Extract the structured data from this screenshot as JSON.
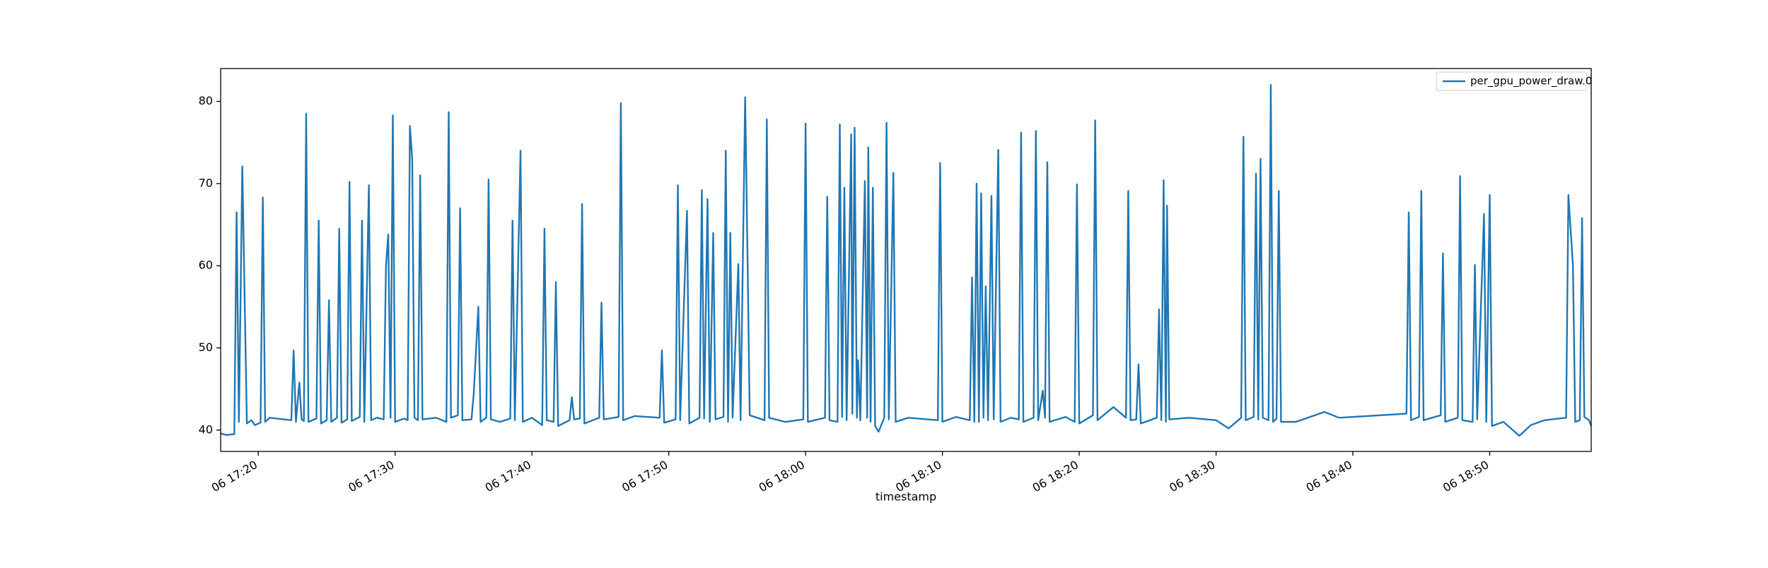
{
  "chart_data": {
    "type": "line",
    "x_label": "timestamp",
    "x": [
      "06 17:17:15",
      "06 17:17:40",
      "06 17:18:15",
      "06 17:18:25",
      "06 17:18:35",
      "06 17:18:50",
      "06 17:19:10",
      "06 17:19:30",
      "06 17:19:45",
      "06 17:20:10",
      "06 17:20:20",
      "06 17:20:30",
      "06 17:20:50",
      "06 17:22:25",
      "06 17:22:35",
      "06 17:22:45",
      "06 17:23:00",
      "06 17:23:10",
      "06 17:23:20",
      "06 17:23:30",
      "06 17:23:40",
      "06 17:24:15",
      "06 17:24:25",
      "06 17:24:35",
      "06 17:25:00",
      "06 17:25:10",
      "06 17:25:20",
      "06 17:25:45",
      "06 17:25:55",
      "06 17:26:05",
      "06 17:26:30",
      "06 17:26:40",
      "06 17:26:50",
      "06 17:27:25",
      "06 17:27:35",
      "06 17:27:45",
      "06 17:28:05",
      "06 17:28:15",
      "06 17:28:40",
      "06 17:29:10",
      "06 17:29:20",
      "06 17:29:30",
      "06 17:29:40",
      "06 17:29:50",
      "06 17:30:00",
      "06 17:30:40",
      "06 17:30:55",
      "06 17:31:05",
      "06 17:31:15",
      "06 17:31:25",
      "06 17:31:40",
      "06 17:31:50",
      "06 17:32:00",
      "06 17:33:00",
      "06 17:33:45",
      "06 17:33:55",
      "06 17:34:05",
      "06 17:34:35",
      "06 17:34:45",
      "06 17:34:55",
      "06 17:35:35",
      "06 17:35:45",
      "06 17:36:05",
      "06 17:36:15",
      "06 17:36:40",
      "06 17:36:50",
      "06 17:37:00",
      "06 17:37:40",
      "06 17:38:25",
      "06 17:38:35",
      "06 17:38:45",
      "06 17:39:10",
      "06 17:39:20",
      "06 17:40:00",
      "06 17:40:45",
      "06 17:40:55",
      "06 17:41:05",
      "06 17:41:35",
      "06 17:41:45",
      "06 17:41:55",
      "06 17:42:45",
      "06 17:42:55",
      "06 17:43:05",
      "06 17:43:30",
      "06 17:43:40",
      "06 17:43:50",
      "06 17:44:55",
      "06 17:45:05",
      "06 17:45:15",
      "06 17:46:20",
      "06 17:46:30",
      "06 17:46:40",
      "06 17:47:30",
      "06 17:49:20",
      "06 17:49:30",
      "06 17:49:40",
      "06 17:50:30",
      "06 17:50:40",
      "06 17:50:50",
      "06 17:51:20",
      "06 17:51:30",
      "06 17:52:15",
      "06 17:52:25",
      "06 17:52:35",
      "06 17:52:50",
      "06 17:53:00",
      "06 17:53:15",
      "06 17:53:25",
      "06 17:54:00",
      "06 17:54:10",
      "06 17:54:20",
      "06 17:54:30",
      "06 17:54:40",
      "06 17:55:05",
      "06 17:55:15",
      "06 17:55:35",
      "06 17:55:45",
      "06 17:55:55",
      "06 17:57:00",
      "06 17:57:10",
      "06 17:57:20",
      "06 17:58:30",
      "06 17:59:50",
      "06 18:00:00",
      "06 18:00:10",
      "06 18:01:25",
      "06 18:01:35",
      "06 18:01:45",
      "06 18:02:20",
      "06 18:02:30",
      "06 18:02:40",
      "06 18:02:50",
      "06 18:03:00",
      "06 18:03:20",
      "06 18:03:25",
      "06 18:03:35",
      "06 18:03:45",
      "06 18:03:50",
      "06 18:04:00",
      "06 18:04:20",
      "06 18:04:30",
      "06 18:04:35",
      "06 18:04:45",
      "06 18:04:55",
      "06 18:05:05",
      "06 18:05:20",
      "06 18:05:45",
      "06 18:05:55",
      "06 18:06:05",
      "06 18:06:25",
      "06 18:06:35",
      "06 18:07:30",
      "06 18:09:40",
      "06 18:09:50",
      "06 18:10:00",
      "06 18:11:00",
      "06 18:12:00",
      "06 18:12:10",
      "06 18:12:20",
      "06 18:12:30",
      "06 18:12:40",
      "06 18:12:50",
      "06 18:13:00",
      "06 18:13:10",
      "06 18:13:20",
      "06 18:13:35",
      "06 18:13:45",
      "06 18:14:05",
      "06 18:14:15",
      "06 18:15:00",
      "06 18:15:35",
      "06 18:15:45",
      "06 18:15:55",
      "06 18:16:40",
      "06 18:16:50",
      "06 18:17:00",
      "06 18:17:20",
      "06 18:17:30",
      "06 18:17:40",
      "06 18:17:50",
      "06 18:19:00",
      "06 18:19:40",
      "06 18:19:50",
      "06 18:20:00",
      "06 18:21:00",
      "06 18:21:10",
      "06 18:21:20",
      "06 18:22:30",
      "06 18:23:25",
      "06 18:23:35",
      "06 18:23:45",
      "06 18:24:10",
      "06 18:24:20",
      "06 18:24:30",
      "06 18:25:40",
      "06 18:25:50",
      "06 18:26:00",
      "06 18:26:10",
      "06 18:26:20",
      "06 18:26:25",
      "06 18:26:35",
      "06 18:28:00",
      "06 18:30:00",
      "06 18:30:55",
      "06 18:31:50",
      "06 18:32:00",
      "06 18:32:10",
      "06 18:32:45",
      "06 18:32:55",
      "06 18:33:05",
      "06 18:33:15",
      "06 18:33:25",
      "06 18:33:50",
      "06 18:34:00",
      "06 18:34:10",
      "06 18:34:25",
      "06 18:34:35",
      "06 18:34:45",
      "06 18:35:50",
      "06 18:37:55",
      "06 18:39:00",
      "06 18:42:00",
      "06 18:43:55",
      "06 18:44:05",
      "06 18:44:15",
      "06 18:44:50",
      "06 18:45:00",
      "06 18:45:10",
      "06 18:46:25",
      "06 18:46:35",
      "06 18:46:45",
      "06 18:47:40",
      "06 18:47:50",
      "06 18:48:00",
      "06 18:48:45",
      "06 18:48:55",
      "06 18:49:05",
      "06 18:49:35",
      "06 18:49:45",
      "06 18:50:00",
      "06 18:50:10",
      "06 18:51:00",
      "06 18:52:10",
      "06 18:53:00",
      "06 18:54:00",
      "06 18:55:35",
      "06 18:55:45",
      "06 18:56:05",
      "06 18:56:15",
      "06 18:56:35",
      "06 18:56:45",
      "06 18:56:55",
      "06 18:57:15",
      "06 18:57:25"
    ],
    "series": [
      {
        "name": "per_gpu_power_draw.0",
        "color": "#1f77b4",
        "values": [
          39.6,
          39.4,
          39.5,
          66.5,
          41.0,
          72.1,
          40.8,
          41.2,
          40.6,
          40.9,
          68.3,
          41.0,
          41.5,
          41.2,
          49.7,
          41.0,
          45.8,
          41.3,
          41.1,
          78.5,
          41.0,
          41.4,
          65.5,
          40.8,
          41.2,
          55.8,
          41.0,
          41.5,
          64.5,
          40.9,
          41.3,
          70.2,
          41.1,
          41.6,
          65.5,
          41.0,
          69.8,
          41.2,
          41.5,
          41.3,
          60.0,
          63.8,
          41.5,
          78.3,
          41.0,
          41.4,
          41.2,
          77.0,
          73.0,
          41.5,
          41.2,
          71.0,
          41.3,
          41.5,
          41.0,
          78.7,
          41.5,
          41.8,
          67.0,
          41.2,
          41.3,
          44.5,
          55.0,
          41.0,
          41.5,
          70.5,
          41.3,
          41.0,
          41.4,
          65.5,
          41.2,
          74.0,
          41.0,
          41.5,
          40.6,
          64.5,
          41.2,
          41.0,
          58.0,
          40.5,
          41.2,
          44.0,
          41.3,
          41.4,
          67.5,
          40.8,
          41.5,
          55.5,
          41.3,
          41.6,
          79.8,
          41.2,
          41.7,
          41.5,
          49.7,
          40.9,
          41.3,
          69.8,
          41.2,
          66.7,
          40.8,
          41.5,
          69.2,
          41.4,
          68.1,
          41.0,
          64.0,
          41.3,
          41.6,
          74.0,
          41.0,
          64.0,
          41.5,
          60.2,
          41.2,
          80.5,
          62.0,
          41.8,
          41.2,
          77.8,
          41.5,
          41.0,
          41.3,
          77.3,
          41.0,
          41.5,
          68.4,
          41.2,
          41.0,
          77.2,
          41.6,
          69.5,
          41.2,
          76.0,
          42.0,
          76.8,
          41.5,
          48.5,
          41.2,
          70.3,
          41.5,
          74.4,
          41.0,
          69.5,
          40.5,
          39.8,
          41.5,
          77.4,
          41.3,
          71.3,
          41.0,
          41.5,
          41.2,
          72.5,
          41.0,
          41.6,
          41.2,
          58.6,
          41.0,
          70.0,
          41.0,
          68.8,
          41.5,
          57.5,
          41.2,
          68.5,
          41.3,
          74.1,
          41.0,
          41.5,
          41.3,
          76.2,
          41.0,
          41.5,
          76.4,
          41.2,
          44.8,
          41.5,
          72.6,
          41.0,
          41.6,
          41.0,
          69.9,
          40.8,
          41.8,
          77.7,
          41.2,
          42.8,
          41.5,
          69.1,
          41.2,
          41.3,
          48.0,
          40.8,
          41.5,
          54.7,
          41.2,
          70.4,
          41.0,
          67.3,
          41.3,
          41.5,
          41.2,
          40.2,
          41.5,
          75.7,
          41.2,
          41.6,
          71.2,
          41.3,
          73.0,
          41.5,
          41.2,
          82.0,
          41.0,
          41.4,
          69.1,
          41.0,
          41.0,
          42.2,
          41.5,
          41.8,
          42.0,
          66.5,
          41.2,
          41.6,
          69.1,
          41.2,
          41.8,
          61.5,
          41.0,
          41.5,
          70.9,
          41.2,
          41.0,
          60.1,
          41.3,
          66.3,
          41.0,
          68.6,
          40.5,
          41.0,
          39.3,
          40.6,
          41.2,
          41.5,
          68.6,
          60.0,
          41.0,
          41.2,
          65.8,
          41.6,
          41.2,
          40.5
        ]
      }
    ],
    "xlim": [
      "06 17:17:15",
      "06 18:57:25"
    ],
    "xticks": [
      "06 17:20",
      "06 17:30",
      "06 17:40",
      "06 17:50",
      "06 18:00",
      "06 18:10",
      "06 18:20",
      "06 18:30",
      "06 18:40",
      "06 18:50"
    ],
    "ylim": [
      37.4,
      84
    ],
    "yticks": [
      40,
      50,
      60,
      70,
      80
    ],
    "grid": false,
    "legend": "upper right"
  }
}
